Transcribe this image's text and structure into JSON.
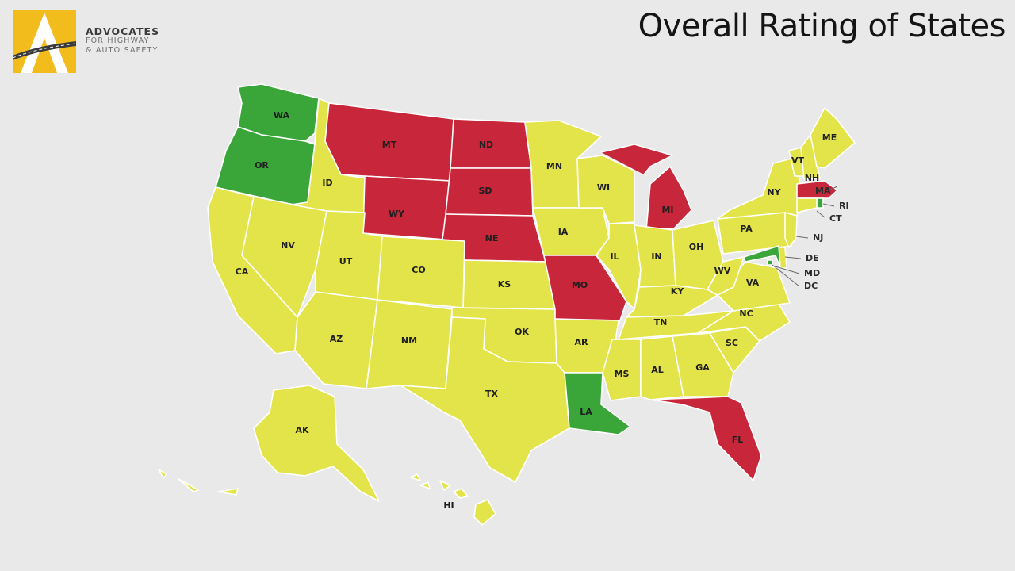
{
  "logo": {
    "line1": "ADVOCATES",
    "line2": "FOR HIGHWAY",
    "line3": "& AUTO SAFETY"
  },
  "title": "Overall Rating of States",
  "colors": {
    "good": "#3aa63a",
    "caution": "#e3e34a",
    "danger": "#c8263a",
    "background": "#e9e9e9"
  },
  "states": [
    {
      "abbr": "WA",
      "rating": "good"
    },
    {
      "abbr": "OR",
      "rating": "good"
    },
    {
      "abbr": "CA",
      "rating": "caution"
    },
    {
      "abbr": "NV",
      "rating": "caution"
    },
    {
      "abbr": "ID",
      "rating": "caution"
    },
    {
      "abbr": "MT",
      "rating": "danger"
    },
    {
      "abbr": "WY",
      "rating": "danger"
    },
    {
      "abbr": "UT",
      "rating": "caution"
    },
    {
      "abbr": "AZ",
      "rating": "caution"
    },
    {
      "abbr": "CO",
      "rating": "caution"
    },
    {
      "abbr": "NM",
      "rating": "caution"
    },
    {
      "abbr": "ND",
      "rating": "danger"
    },
    {
      "abbr": "SD",
      "rating": "danger"
    },
    {
      "abbr": "NE",
      "rating": "danger"
    },
    {
      "abbr": "KS",
      "rating": "caution"
    },
    {
      "abbr": "OK",
      "rating": "caution"
    },
    {
      "abbr": "TX",
      "rating": "caution"
    },
    {
      "abbr": "MN",
      "rating": "caution"
    },
    {
      "abbr": "IA",
      "rating": "caution"
    },
    {
      "abbr": "MO",
      "rating": "danger"
    },
    {
      "abbr": "AR",
      "rating": "caution"
    },
    {
      "abbr": "LA",
      "rating": "good"
    },
    {
      "abbr": "WI",
      "rating": "caution"
    },
    {
      "abbr": "MI",
      "rating": "danger"
    },
    {
      "abbr": "IL",
      "rating": "caution"
    },
    {
      "abbr": "IN",
      "rating": "caution"
    },
    {
      "abbr": "OH",
      "rating": "caution"
    },
    {
      "abbr": "KY",
      "rating": "caution"
    },
    {
      "abbr": "TN",
      "rating": "caution"
    },
    {
      "abbr": "MS",
      "rating": "caution"
    },
    {
      "abbr": "AL",
      "rating": "caution"
    },
    {
      "abbr": "GA",
      "rating": "caution"
    },
    {
      "abbr": "FL",
      "rating": "danger"
    },
    {
      "abbr": "SC",
      "rating": "caution"
    },
    {
      "abbr": "NC",
      "rating": "caution"
    },
    {
      "abbr": "VA",
      "rating": "caution"
    },
    {
      "abbr": "WV",
      "rating": "caution"
    },
    {
      "abbr": "PA",
      "rating": "caution"
    },
    {
      "abbr": "NY",
      "rating": "caution"
    },
    {
      "abbr": "VT",
      "rating": "caution"
    },
    {
      "abbr": "NH",
      "rating": "caution"
    },
    {
      "abbr": "ME",
      "rating": "caution"
    },
    {
      "abbr": "MA",
      "rating": "danger"
    },
    {
      "abbr": "RI",
      "rating": "good"
    },
    {
      "abbr": "CT",
      "rating": "caution"
    },
    {
      "abbr": "NJ",
      "rating": "caution"
    },
    {
      "abbr": "DE",
      "rating": "caution"
    },
    {
      "abbr": "MD",
      "rating": "good"
    },
    {
      "abbr": "DC",
      "rating": "good"
    },
    {
      "abbr": "AK",
      "rating": "caution"
    },
    {
      "abbr": "HI",
      "rating": "caution"
    }
  ]
}
